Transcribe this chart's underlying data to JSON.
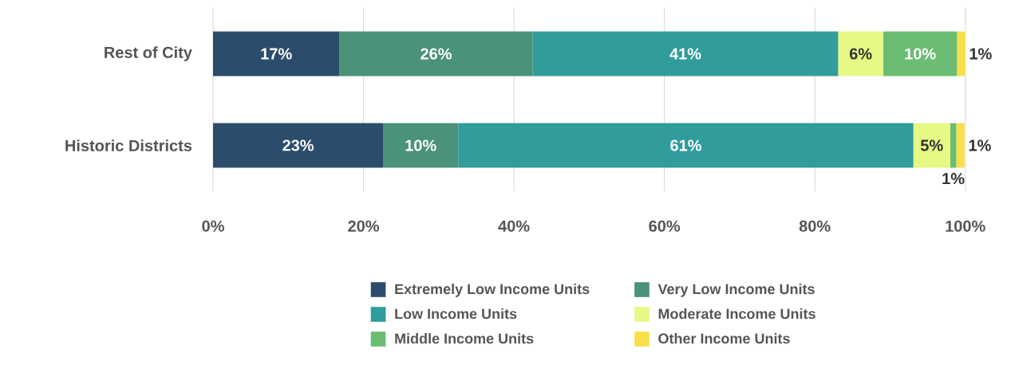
{
  "chart_data": {
    "type": "bar",
    "orientation": "horizontal",
    "stacked": true,
    "categories": [
      "Rest of City",
      "Historic Districts"
    ],
    "series": [
      {
        "name": "Extremely Low Income Units",
        "color": "#2b4d6b",
        "values": [
          16.8,
          22.6
        ],
        "value_labels": [
          "17%",
          "23%"
        ]
      },
      {
        "name": "Very Low Income Units",
        "color": "#4a927a",
        "values": [
          25.7,
          10.0
        ],
        "value_labels": [
          "26%",
          "10%"
        ]
      },
      {
        "name": "Low Income Units",
        "color": "#319c9c",
        "values": [
          40.6,
          60.5
        ],
        "value_labels": [
          "41%",
          "61%"
        ]
      },
      {
        "name": "Moderate Income Units",
        "color": "#e6f985",
        "values": [
          6.0,
          4.9
        ],
        "value_labels": [
          "6%",
          "5%"
        ]
      },
      {
        "name": "Middle Income Units",
        "color": "#6abd72",
        "values": [
          9.8,
          0.8
        ],
        "value_labels": [
          "10%",
          "1%"
        ]
      },
      {
        "name": "Other Income Units",
        "color": "#f9e04b",
        "values": [
          1.1,
          1.1
        ],
        "value_labels": [
          "1%",
          "1%"
        ]
      }
    ],
    "xlim": [
      0,
      100
    ],
    "xticks": [
      {
        "value": 0,
        "label": "0%"
      },
      {
        "value": 20,
        "label": "20%"
      },
      {
        "value": 40,
        "label": "40%"
      },
      {
        "value": 60,
        "label": "60%"
      },
      {
        "value": 80,
        "label": "80%"
      },
      {
        "value": 100,
        "label": "100%"
      }
    ],
    "grid": "x",
    "legend": "bottom"
  }
}
